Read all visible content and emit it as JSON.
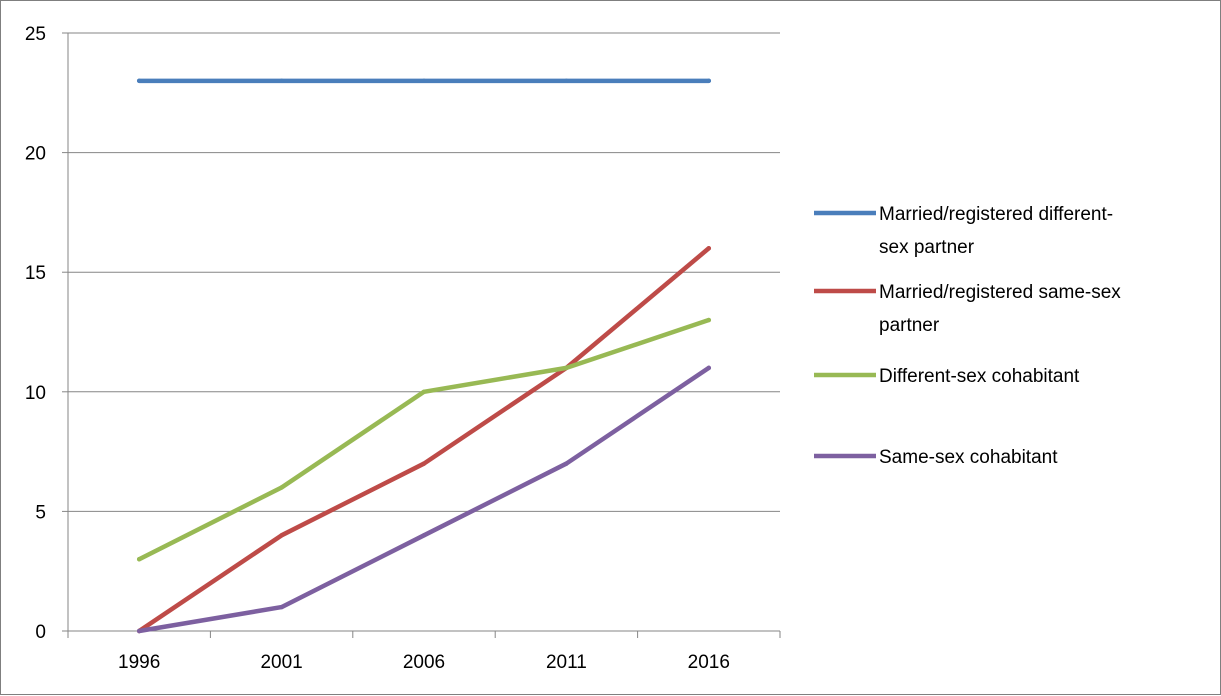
{
  "chart_data": {
    "type": "line",
    "title": "",
    "xlabel": "",
    "ylabel": "",
    "categories": [
      "1996",
      "2001",
      "2006",
      "2011",
      "2016"
    ],
    "ylim": [
      0,
      25
    ],
    "yticks": [
      "0",
      "5",
      "10",
      "15",
      "20",
      "25"
    ],
    "grid": true,
    "legend_position": "right",
    "series": [
      {
        "name": "Married/registered different-sex partner",
        "name_lines": [
          "Married/registered different-",
          "sex partner"
        ],
        "color": "#4a7ebb",
        "values": [
          23,
          23,
          23,
          23,
          23
        ]
      },
      {
        "name": "Married/registered same-sex partner",
        "name_lines": [
          "Married/registered same-sex",
          "partner"
        ],
        "color": "#be4b48",
        "values": [
          0,
          4,
          7,
          11,
          16
        ]
      },
      {
        "name": "Different-sex cohabitant",
        "name_lines": [
          "Different-sex cohabitant"
        ],
        "color": "#98b954",
        "values": [
          3,
          6,
          10,
          11,
          13
        ]
      },
      {
        "name": "Same-sex cohabitant",
        "name_lines": [
          "Same-sex cohabitant"
        ],
        "color": "#7d60a0",
        "values": [
          0,
          1,
          4,
          7,
          11
        ]
      }
    ]
  }
}
